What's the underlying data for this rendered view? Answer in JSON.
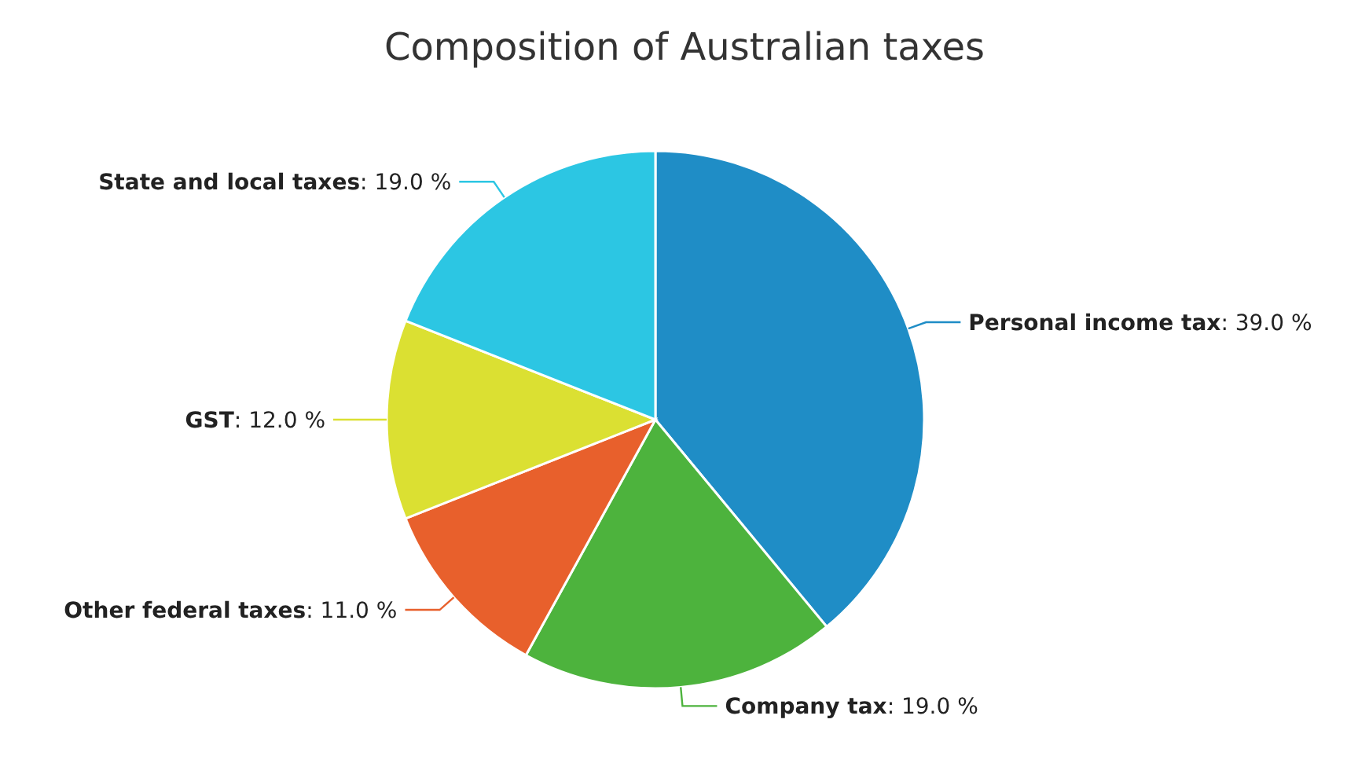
{
  "chart_data": {
    "type": "pie",
    "title": "Composition of Australian taxes",
    "categories": [
      "Personal income tax",
      "Company tax",
      "Other federal taxes",
      "GST",
      "State and local taxes"
    ],
    "values": [
      39.0,
      19.0,
      11.0,
      12.0,
      19.0
    ],
    "colors": [
      "#1f8dc6",
      "#4db33d",
      "#e8602c",
      "#dbe032",
      "#2cc6e3"
    ],
    "value_labels": [
      ": 39.0 %",
      ": 19.0 %",
      ": 11.0 %",
      ": 12.0 %",
      ": 19.0 %"
    ],
    "legend": false
  }
}
